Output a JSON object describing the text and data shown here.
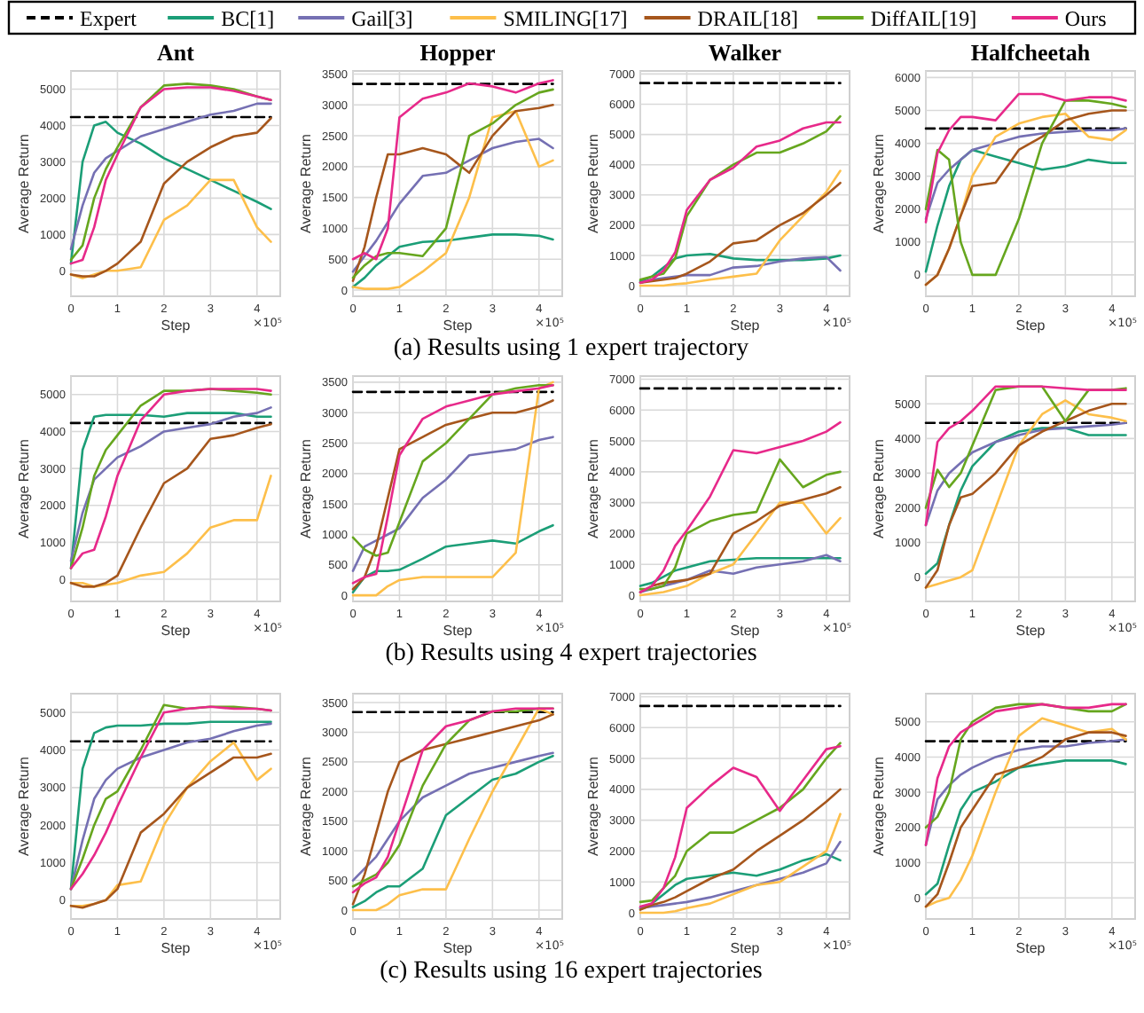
{
  "chart_data": [
    {
      "type": "line",
      "title": "Ant",
      "xlabel": "Step",
      "ylabel": "Average Return",
      "annotations": [
        "×10⁵",
        "(a) Results using 1 expert trajectory"
      ],
      "xlim": [
        0,
        4.5
      ],
      "xticks": [
        0,
        1,
        2,
        3,
        4
      ],
      "ylim": [
        -700,
        5500
      ],
      "yticks": [
        0,
        1000,
        2000,
        3000,
        4000,
        5000
      ],
      "grid": true,
      "legend": "top",
      "x": [
        0,
        0.25,
        0.5,
        0.75,
        1,
        1.5,
        2,
        2.5,
        3,
        3.5,
        4,
        4.3
      ],
      "series": [
        {
          "name": "Expert",
          "color": "#000000",
          "line_style": "dashed",
          "values": [
            4230,
            4230,
            4230,
            4230,
            4230,
            4230,
            4230,
            4230,
            4230,
            4230,
            4230,
            4230
          ]
        },
        {
          "name": "BC[1]",
          "color": "#1b9e77",
          "values": [
            200,
            3000,
            4000,
            4100,
            3800,
            3500,
            3100,
            2800,
            2500,
            2200,
            1900,
            1700
          ]
        },
        {
          "name": "Gail[3]",
          "color": "#7570b3",
          "values": [
            600,
            1800,
            2700,
            3100,
            3300,
            3700,
            3900,
            4100,
            4300,
            4400,
            4600,
            4600
          ]
        },
        {
          "name": "SMILING[17]",
          "color": "#fdbf4a",
          "values": [
            -100,
            -200,
            -100,
            0,
            0,
            100,
            1400,
            1800,
            2500,
            2500,
            1200,
            800
          ]
        },
        {
          "name": "DRAIL[18]",
          "color": "#a6561c",
          "values": [
            -100,
            -150,
            -150,
            0,
            200,
            800,
            2400,
            3000,
            3400,
            3700,
            3800,
            4200
          ]
        },
        {
          "name": "DiffAIL[19]",
          "color": "#66a61e",
          "values": [
            300,
            700,
            2000,
            2800,
            3400,
            4500,
            5100,
            5150,
            5100,
            5000,
            4800,
            4700
          ]
        },
        {
          "name": "Ours",
          "color": "#e7298a",
          "values": [
            200,
            300,
            1200,
            2500,
            3200,
            4500,
            5000,
            5050,
            5050,
            4950,
            4800,
            4700
          ]
        }
      ]
    },
    {
      "type": "line",
      "title": "Hopper",
      "xlabel": "Step",
      "ylabel": "Average Return",
      "annotations": [
        "×10⁵"
      ],
      "xlim": [
        0,
        4.5
      ],
      "xticks": [
        0,
        1,
        2,
        3,
        4
      ],
      "ylim": [
        -100,
        3550
      ],
      "yticks": [
        0,
        500,
        1000,
        1500,
        2000,
        2500,
        3000,
        3500
      ],
      "grid": true,
      "x": [
        0,
        0.25,
        0.5,
        0.75,
        1,
        1.5,
        2,
        2.5,
        3,
        3.5,
        4,
        4.3
      ],
      "series": [
        {
          "color": "#000000",
          "line_style": "dashed",
          "values": [
            3340,
            3340,
            3340,
            3340,
            3340,
            3340,
            3340,
            3340,
            3340,
            3340,
            3340,
            3340
          ]
        },
        {
          "color": "#1b9e77",
          "values": [
            50,
            200,
            400,
            550,
            700,
            780,
            800,
            850,
            900,
            900,
            880,
            820
          ]
        },
        {
          "color": "#7570b3",
          "values": [
            300,
            550,
            800,
            1100,
            1400,
            1850,
            1900,
            2100,
            2300,
            2400,
            2450,
            2300
          ]
        },
        {
          "color": "#fdbf4a",
          "values": [
            50,
            20,
            20,
            20,
            50,
            300,
            600,
            1500,
            2800,
            2900,
            2000,
            2100
          ]
        },
        {
          "color": "#a6561c",
          "values": [
            150,
            700,
            1500,
            2200,
            2200,
            2300,
            2200,
            1900,
            2500,
            2900,
            2950,
            3000
          ]
        },
        {
          "color": "#66a61e",
          "values": [
            200,
            400,
            550,
            600,
            600,
            550,
            1000,
            2500,
            2700,
            3000,
            3200,
            3250
          ]
        },
        {
          "color": "#e7298a",
          "values": [
            500,
            600,
            500,
            1000,
            2800,
            3100,
            3200,
            3350,
            3300,
            3200,
            3350,
            3400
          ]
        }
      ]
    },
    {
      "type": "line",
      "title": "Walker",
      "xlabel": "Step",
      "ylabel": "Average Return",
      "annotations": [
        "×10⁵"
      ],
      "xlim": [
        0,
        4.5
      ],
      "xticks": [
        0,
        1,
        2,
        3,
        4
      ],
      "ylim": [
        -350,
        7100
      ],
      "yticks": [
        0,
        1000,
        2000,
        3000,
        4000,
        5000,
        6000,
        7000
      ],
      "grid": true,
      "x": [
        0,
        0.25,
        0.5,
        0.75,
        1,
        1.5,
        2,
        2.5,
        3,
        3.5,
        4,
        4.3
      ],
      "series": [
        {
          "color": "#000000",
          "line_style": "dashed",
          "values": [
            6700,
            6700,
            6700,
            6700,
            6700,
            6700,
            6700,
            6700,
            6700,
            6700,
            6700,
            6700
          ]
        },
        {
          "color": "#1b9e77",
          "values": [
            150,
            300,
            600,
            900,
            1000,
            1050,
            900,
            850,
            850,
            850,
            900,
            1000
          ]
        },
        {
          "color": "#7570b3",
          "values": [
            100,
            200,
            250,
            300,
            350,
            350,
            600,
            650,
            800,
            900,
            950,
            500
          ]
        },
        {
          "color": "#fdbf4a",
          "values": [
            0,
            0,
            0,
            50,
            80,
            200,
            300,
            400,
            1500,
            2300,
            3100,
            3800
          ]
        },
        {
          "color": "#a6561c",
          "values": [
            100,
            150,
            200,
            250,
            400,
            800,
            1400,
            1500,
            2000,
            2400,
            3000,
            3400
          ]
        },
        {
          "color": "#66a61e",
          "values": [
            200,
            300,
            400,
            900,
            2300,
            3500,
            4000,
            4400,
            4400,
            4700,
            5100,
            5600
          ]
        },
        {
          "color": "#e7298a",
          "values": [
            100,
            200,
            500,
            1100,
            2500,
            3500,
            3900,
            4600,
            4800,
            5200,
            5400,
            5400
          ]
        }
      ]
    },
    {
      "type": "line",
      "title": "Halfcheetah",
      "xlabel": "Step",
      "ylabel": "Average Return",
      "annotations": [
        "×10⁵"
      ],
      "xlim": [
        0,
        4.5
      ],
      "xticks": [
        0,
        1,
        2,
        3,
        4
      ],
      "ylim": [
        -650,
        6200
      ],
      "yticks": [
        0,
        1000,
        2000,
        3000,
        4000,
        5000,
        6000
      ],
      "grid": true,
      "x": [
        0,
        0.25,
        0.5,
        0.75,
        1,
        1.5,
        2,
        2.5,
        3,
        3.5,
        4,
        4.3
      ],
      "series": [
        {
          "color": "#000000",
          "line_style": "dashed",
          "values": [
            4450,
            4450,
            4450,
            4450,
            4450,
            4450,
            4450,
            4450,
            4450,
            4450,
            4450,
            4450
          ]
        },
        {
          "color": "#1b9e77",
          "values": [
            100,
            1500,
            2700,
            3500,
            3800,
            3600,
            3400,
            3200,
            3300,
            3500,
            3400,
            3400
          ]
        },
        {
          "color": "#7570b3",
          "values": [
            1700,
            2800,
            3200,
            3500,
            3800,
            4000,
            4200,
            4300,
            4350,
            4400,
            4400,
            4450
          ]
        },
        {
          "color": "#fdbf4a",
          "values": [
            -300,
            0,
            800,
            1800,
            3000,
            4200,
            4600,
            4800,
            4900,
            4200,
            4100,
            4400
          ]
        },
        {
          "color": "#a6561c",
          "values": [
            -300,
            0,
            800,
            1800,
            2700,
            2800,
            3800,
            4200,
            4700,
            4900,
            5000,
            5000
          ]
        },
        {
          "color": "#66a61e",
          "values": [
            2000,
            3800,
            3500,
            1000,
            0,
            0,
            1700,
            4000,
            5300,
            5300,
            5200,
            5100
          ]
        },
        {
          "color": "#e7298a",
          "values": [
            1600,
            3700,
            4400,
            4800,
            4800,
            4700,
            5500,
            5500,
            5300,
            5400,
            5400,
            5300
          ]
        }
      ]
    },
    {
      "type": "line",
      "xlabel": "Step",
      "ylabel": "Average Return",
      "annotations": [
        "×10⁵",
        "(b) Results using 4 expert trajectories"
      ],
      "xlim": [
        0,
        4.5
      ],
      "xticks": [
        0,
        1,
        2,
        3,
        4
      ],
      "ylim": [
        -600,
        5500
      ],
      "yticks": [
        0,
        1000,
        2000,
        3000,
        4000,
        5000
      ],
      "grid": true,
      "x": [
        0,
        0.25,
        0.5,
        0.75,
        1,
        1.5,
        2,
        2.5,
        3,
        3.5,
        4,
        4.3
      ],
      "series": [
        {
          "color": "#000000",
          "line_style": "dashed",
          "values": [
            4230,
            4230,
            4230,
            4230,
            4230,
            4230,
            4230,
            4230,
            4230,
            4230,
            4230,
            4230
          ]
        },
        {
          "color": "#1b9e77",
          "values": [
            300,
            3500,
            4400,
            4450,
            4450,
            4450,
            4400,
            4500,
            4500,
            4500,
            4400,
            4400
          ]
        },
        {
          "color": "#7570b3",
          "values": [
            500,
            1800,
            2700,
            3000,
            3300,
            3600,
            4000,
            4100,
            4200,
            4400,
            4500,
            4650
          ]
        },
        {
          "color": "#fdbf4a",
          "values": [
            -100,
            -100,
            -200,
            -150,
            -100,
            100,
            200,
            700,
            1400,
            1600,
            1600,
            2800
          ]
        },
        {
          "color": "#a6561c",
          "values": [
            -100,
            -200,
            -200,
            -100,
            100,
            1400,
            2600,
            3000,
            3800,
            3900,
            4100,
            4200
          ]
        },
        {
          "color": "#66a61e",
          "values": [
            300,
            1400,
            2800,
            3500,
            3900,
            4700,
            5100,
            5100,
            5150,
            5100,
            5050,
            5000
          ]
        },
        {
          "color": "#e7298a",
          "values": [
            300,
            700,
            800,
            1700,
            2800,
            4300,
            5000,
            5100,
            5150,
            5150,
            5150,
            5100
          ]
        }
      ]
    },
    {
      "type": "line",
      "xlabel": "Step",
      "ylabel": "Average Return",
      "annotations": [
        "×10⁵"
      ],
      "xlim": [
        0,
        4.5
      ],
      "xticks": [
        0,
        1,
        2,
        3,
        4
      ],
      "ylim": [
        -100,
        3600
      ],
      "yticks": [
        0,
        500,
        1000,
        1500,
        2000,
        2500,
        3000,
        3500
      ],
      "grid": true,
      "x": [
        0,
        0.25,
        0.5,
        0.75,
        1,
        1.5,
        2,
        2.5,
        3,
        3.5,
        4,
        4.3
      ],
      "series": [
        {
          "color": "#000000",
          "line_style": "dashed",
          "values": [
            3340,
            3340,
            3340,
            3340,
            3340,
            3340,
            3340,
            3340,
            3340,
            3340,
            3340,
            3340
          ]
        },
        {
          "color": "#1b9e77",
          "values": [
            50,
            300,
            400,
            400,
            420,
            600,
            800,
            850,
            900,
            850,
            1050,
            1150
          ]
        },
        {
          "color": "#7570b3",
          "values": [
            400,
            800,
            900,
            1000,
            1100,
            1600,
            1900,
            2300,
            2350,
            2400,
            2550,
            2600
          ]
        },
        {
          "color": "#fdbf4a",
          "values": [
            0,
            0,
            0,
            150,
            250,
            300,
            300,
            300,
            300,
            700,
            3400,
            3500
          ]
        },
        {
          "color": "#a6561c",
          "values": [
            100,
            300,
            800,
            1600,
            2400,
            2600,
            2800,
            2900,
            3000,
            3000,
            3100,
            3200
          ]
        },
        {
          "color": "#66a61e",
          "values": [
            950,
            750,
            650,
            700,
            1200,
            2200,
            2500,
            2900,
            3300,
            3400,
            3450,
            3450
          ]
        },
        {
          "color": "#e7298a",
          "values": [
            200,
            300,
            350,
            1300,
            2300,
            2900,
            3100,
            3200,
            3300,
            3350,
            3400,
            3450
          ]
        }
      ]
    },
    {
      "type": "line",
      "xlabel": "Step",
      "ylabel": "Average Return",
      "annotations": [
        "×10⁵"
      ],
      "xlim": [
        0,
        4.5
      ],
      "xticks": [
        0,
        1,
        2,
        3,
        4
      ],
      "ylim": [
        -200,
        7100
      ],
      "yticks": [
        0,
        1000,
        2000,
        3000,
        4000,
        5000,
        6000,
        7000
      ],
      "grid": true,
      "x": [
        0,
        0.25,
        0.5,
        0.75,
        1,
        1.5,
        2,
        2.5,
        3,
        3.5,
        4,
        4.3
      ],
      "series": [
        {
          "color": "#000000",
          "line_style": "dashed",
          "values": [
            6700,
            6700,
            6700,
            6700,
            6700,
            6700,
            6700,
            6700,
            6700,
            6700,
            6700,
            6700
          ]
        },
        {
          "color": "#1b9e77",
          "values": [
            300,
            400,
            600,
            800,
            900,
            1100,
            1150,
            1200,
            1200,
            1200,
            1200,
            1200
          ]
        },
        {
          "color": "#7570b3",
          "values": [
            100,
            200,
            300,
            400,
            500,
            800,
            700,
            900,
            1000,
            1100,
            1300,
            1100
          ]
        },
        {
          "color": "#fdbf4a",
          "values": [
            0,
            50,
            100,
            200,
            300,
            700,
            1000,
            2000,
            3000,
            3000,
            2000,
            2500
          ]
        },
        {
          "color": "#a6561c",
          "values": [
            100,
            300,
            400,
            450,
            500,
            700,
            2000,
            2400,
            2900,
            3100,
            3300,
            3500
          ]
        },
        {
          "color": "#66a61e",
          "values": [
            200,
            200,
            300,
            900,
            2000,
            2400,
            2600,
            2700,
            4400,
            3500,
            3900,
            4000
          ]
        },
        {
          "color": "#e7298a",
          "values": [
            100,
            300,
            800,
            1600,
            2100,
            3200,
            4700,
            4600,
            4800,
            5000,
            5300,
            5600
          ]
        }
      ]
    },
    {
      "type": "line",
      "xlabel": "Step",
      "ylabel": "Average Return",
      "annotations": [
        "×10⁵"
      ],
      "xlim": [
        0,
        4.5
      ],
      "xticks": [
        0,
        1,
        2,
        3,
        4
      ],
      "ylim": [
        -700,
        5800
      ],
      "yticks": [
        0,
        1000,
        2000,
        3000,
        4000,
        5000
      ],
      "grid": true,
      "x": [
        0,
        0.25,
        0.5,
        0.75,
        1,
        1.5,
        2,
        2.5,
        3,
        3.5,
        4,
        4.3
      ],
      "series": [
        {
          "color": "#000000",
          "line_style": "dashed",
          "values": [
            4450,
            4450,
            4450,
            4450,
            4450,
            4450,
            4450,
            4450,
            4450,
            4450,
            4450,
            4450
          ]
        },
        {
          "color": "#1b9e77",
          "values": [
            100,
            400,
            1500,
            2500,
            3200,
            3900,
            4200,
            4300,
            4300,
            4100,
            4100,
            4100
          ]
        },
        {
          "color": "#7570b3",
          "values": [
            1500,
            2500,
            3000,
            3300,
            3600,
            3900,
            4100,
            4250,
            4300,
            4350,
            4400,
            4450
          ]
        },
        {
          "color": "#fdbf4a",
          "values": [
            -300,
            -200,
            -100,
            0,
            200,
            2000,
            3800,
            4700,
            5100,
            4700,
            4600,
            4500
          ]
        },
        {
          "color": "#a6561c",
          "values": [
            -300,
            200,
            1500,
            2300,
            2400,
            3000,
            3800,
            4200,
            4500,
            4800,
            5000,
            5000
          ]
        },
        {
          "color": "#66a61e",
          "values": [
            2000,
            3100,
            2600,
            3000,
            3800,
            5400,
            5500,
            5500,
            4500,
            5400,
            5400,
            5450
          ]
        },
        {
          "color": "#e7298a",
          "values": [
            1500,
            3900,
            4300,
            4500,
            4800,
            5500,
            5500,
            5500,
            5450,
            5400,
            5400,
            5400
          ]
        }
      ]
    },
    {
      "type": "line",
      "xlabel": "Step",
      "ylabel": "Average Return",
      "annotations": [
        "×10⁵",
        "(c) Results using 16 expert trajectories"
      ],
      "xlim": [
        0,
        4.5
      ],
      "xticks": [
        0,
        1,
        2,
        3,
        4
      ],
      "ylim": [
        -500,
        5500
      ],
      "yticks": [
        0,
        1000,
        2000,
        3000,
        4000,
        5000
      ],
      "grid": true,
      "x": [
        0,
        0.25,
        0.5,
        0.75,
        1,
        1.5,
        2,
        2.5,
        3,
        3.5,
        4,
        4.3
      ],
      "series": [
        {
          "color": "#000000",
          "line_style": "dashed",
          "values": [
            4230,
            4230,
            4230,
            4230,
            4230,
            4230,
            4230,
            4230,
            4230,
            4230,
            4230,
            4230
          ]
        },
        {
          "color": "#1b9e77",
          "values": [
            300,
            3500,
            4450,
            4600,
            4650,
            4650,
            4700,
            4700,
            4750,
            4750,
            4750,
            4750
          ]
        },
        {
          "color": "#7570b3",
          "values": [
            300,
            1600,
            2700,
            3200,
            3500,
            3800,
            4000,
            4200,
            4300,
            4500,
            4650,
            4700
          ]
        },
        {
          "color": "#fdbf4a",
          "values": [
            -150,
            -150,
            -100,
            0,
            400,
            500,
            2000,
            3000,
            3700,
            4200,
            3200,
            3500
          ]
        },
        {
          "color": "#a6561c",
          "values": [
            -150,
            -200,
            -100,
            0,
            300,
            1800,
            2300,
            3000,
            3400,
            3800,
            3800,
            3900
          ]
        },
        {
          "color": "#66a61e",
          "values": [
            300,
            1100,
            2000,
            2700,
            2900,
            4000,
            5200,
            5100,
            5150,
            5150,
            5100,
            5050
          ]
        },
        {
          "color": "#e7298a",
          "values": [
            300,
            700,
            1200,
            1800,
            2500,
            3800,
            5000,
            5100,
            5150,
            5100,
            5100,
            5050
          ]
        }
      ]
    },
    {
      "type": "line",
      "xlabel": "Step",
      "ylabel": "Average Return",
      "annotations": [
        "×10⁵"
      ],
      "xlim": [
        0,
        4.5
      ],
      "xticks": [
        0,
        1,
        2,
        3,
        4
      ],
      "ylim": [
        -150,
        3650
      ],
      "yticks": [
        0,
        500,
        1000,
        1500,
        2000,
        2500,
        3000,
        3500
      ],
      "grid": true,
      "x": [
        0,
        0.25,
        0.5,
        0.75,
        1,
        1.5,
        2,
        2.5,
        3,
        3.5,
        4,
        4.3
      ],
      "series": [
        {
          "color": "#000000",
          "line_style": "dashed",
          "values": [
            3340,
            3340,
            3340,
            3340,
            3340,
            3340,
            3340,
            3340,
            3340,
            3340,
            3340,
            3340
          ]
        },
        {
          "color": "#1b9e77",
          "values": [
            50,
            150,
            300,
            400,
            400,
            700,
            1600,
            1900,
            2200,
            2300,
            2500,
            2600
          ]
        },
        {
          "color": "#7570b3",
          "values": [
            500,
            700,
            900,
            1200,
            1500,
            1900,
            2100,
            2300,
            2400,
            2500,
            2600,
            2650
          ]
        },
        {
          "color": "#fdbf4a",
          "values": [
            0,
            0,
            0,
            100,
            250,
            350,
            350,
            1200,
            2000,
            2700,
            3400,
            3300
          ]
        },
        {
          "color": "#a6561c",
          "values": [
            100,
            600,
            1300,
            2000,
            2500,
            2700,
            2800,
            2900,
            3000,
            3100,
            3200,
            3300
          ]
        },
        {
          "color": "#66a61e",
          "values": [
            400,
            500,
            600,
            800,
            1100,
            2100,
            2800,
            3200,
            3350,
            3350,
            3400,
            3400
          ]
        },
        {
          "color": "#e7298a",
          "values": [
            300,
            450,
            550,
            900,
            1500,
            2700,
            3100,
            3200,
            3350,
            3400,
            3400,
            3400
          ]
        }
      ]
    },
    {
      "type": "line",
      "xlabel": "Step",
      "ylabel": "Average Return",
      "annotations": [
        "×10⁵"
      ],
      "xlim": [
        0,
        4.5
      ],
      "xticks": [
        0,
        1,
        2,
        3,
        4
      ],
      "ylim": [
        -200,
        7100
      ],
      "yticks": [
        0,
        1000,
        2000,
        3000,
        4000,
        5000,
        6000,
        7000
      ],
      "grid": true,
      "x": [
        0,
        0.25,
        0.5,
        0.75,
        1,
        1.5,
        2,
        2.5,
        3,
        3.5,
        4,
        4.3
      ],
      "series": [
        {
          "color": "#000000",
          "line_style": "dashed",
          "values": [
            6700,
            6700,
            6700,
            6700,
            6700,
            6700,
            6700,
            6700,
            6700,
            6700,
            6700,
            6700
          ]
        },
        {
          "color": "#1b9e77",
          "values": [
            150,
            300,
            600,
            900,
            1100,
            1200,
            1300,
            1200,
            1400,
            1700,
            1900,
            1700
          ]
        },
        {
          "color": "#7570b3",
          "values": [
            150,
            200,
            250,
            300,
            350,
            500,
            700,
            900,
            1100,
            1300,
            1600,
            2300
          ]
        },
        {
          "color": "#fdbf4a",
          "values": [
            0,
            0,
            0,
            50,
            150,
            300,
            600,
            900,
            1000,
            1500,
            2000,
            3200
          ]
        },
        {
          "color": "#a6561c",
          "values": [
            100,
            250,
            350,
            500,
            700,
            1100,
            1400,
            2000,
            2500,
            3000,
            3600,
            4000
          ]
        },
        {
          "color": "#66a61e",
          "values": [
            350,
            400,
            800,
            1200,
            2000,
            2600,
            2600,
            3000,
            3400,
            4000,
            5000,
            5500
          ]
        },
        {
          "color": "#e7298a",
          "values": [
            200,
            300,
            800,
            1800,
            3400,
            4100,
            4700,
            4400,
            3300,
            4300,
            5300,
            5400
          ]
        }
      ]
    },
    {
      "type": "line",
      "xlabel": "Step",
      "ylabel": "Average Return",
      "annotations": [
        "×10⁵"
      ],
      "xlim": [
        0,
        4.5
      ],
      "xticks": [
        0,
        1,
        2,
        3,
        4
      ],
      "ylim": [
        -600,
        5800
      ],
      "yticks": [
        0,
        1000,
        2000,
        3000,
        4000,
        5000
      ],
      "grid": true,
      "x": [
        0,
        0.25,
        0.5,
        0.75,
        1,
        1.5,
        2,
        2.5,
        3,
        3.5,
        4,
        4.3
      ],
      "series": [
        {
          "color": "#000000",
          "line_style": "dashed",
          "values": [
            4450,
            4450,
            4450,
            4450,
            4450,
            4450,
            4450,
            4450,
            4450,
            4450,
            4450,
            4450
          ]
        },
        {
          "color": "#1b9e77",
          "values": [
            100,
            400,
            1500,
            2500,
            3000,
            3300,
            3700,
            3800,
            3900,
            3900,
            3900,
            3800
          ]
        },
        {
          "color": "#7570b3",
          "values": [
            1500,
            2800,
            3200,
            3500,
            3700,
            4000,
            4200,
            4300,
            4300,
            4400,
            4450,
            4500
          ]
        },
        {
          "color": "#fdbf4a",
          "values": [
            -250,
            -100,
            0,
            500,
            1200,
            3000,
            4600,
            5100,
            4900,
            4700,
            4800,
            4500
          ]
        },
        {
          "color": "#a6561c",
          "values": [
            -250,
            100,
            1000,
            2000,
            2500,
            3500,
            3700,
            4000,
            4500,
            4700,
            4700,
            4600
          ]
        },
        {
          "color": "#66a61e",
          "values": [
            2000,
            2300,
            3000,
            4500,
            5000,
            5400,
            5500,
            5500,
            5400,
            5300,
            5300,
            5500
          ]
        },
        {
          "color": "#e7298a",
          "values": [
            1500,
            3400,
            4300,
            4700,
            4900,
            5300,
            5400,
            5500,
            5400,
            5400,
            5500,
            5500
          ]
        }
      ]
    }
  ]
}
